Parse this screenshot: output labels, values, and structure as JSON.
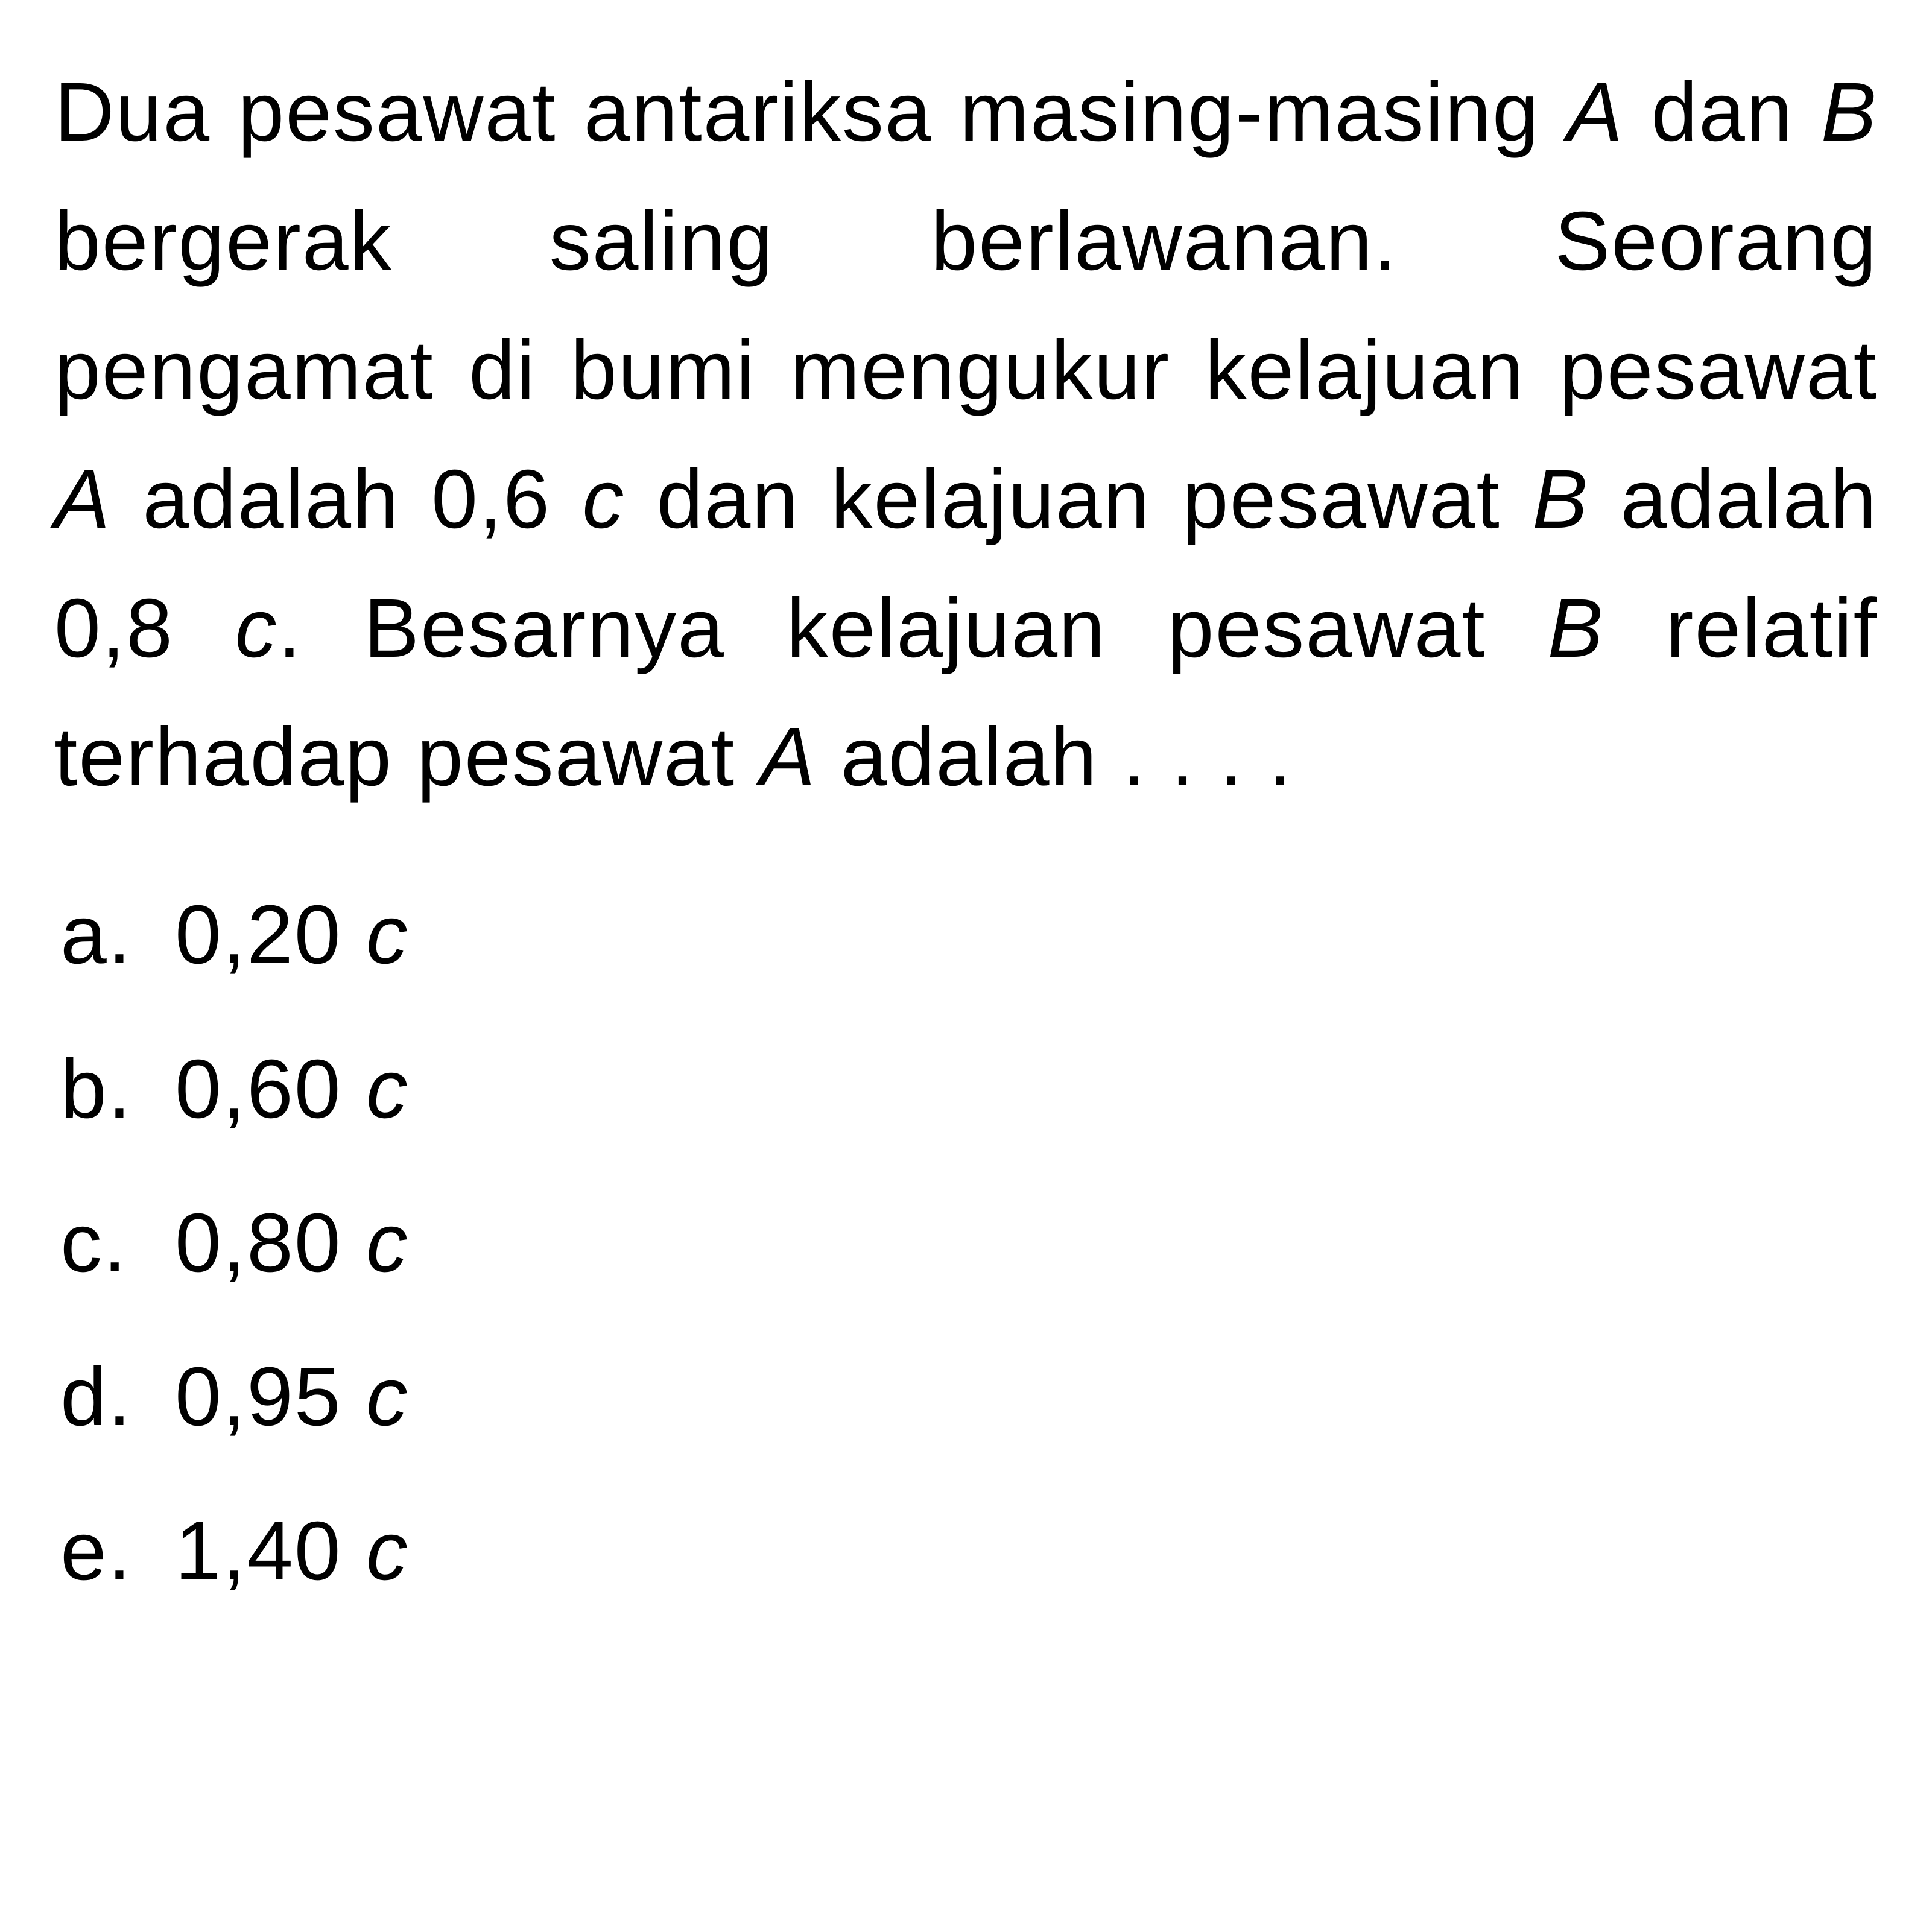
{
  "question": {
    "text_parts": {
      "p1": "Dua pesawat antariksa masing-masing ",
      "v1": "A",
      "p2": " dan ",
      "v2": "B",
      "p3": " bergerak saling berlawanan. Seorang pengamat di bumi mengukur kelajuan pesawat ",
      "v3": "A",
      "p4": " adalah 0,6 ",
      "v4": "c",
      "p5": " dan kelajuan pesawat ",
      "v5": "B",
      "p6": " adalah 0,8 ",
      "v6": "c",
      "p7": ". Besarnya kelajuan pesawat ",
      "v7": "B",
      "p8": " relatif terhadap pesawat ",
      "v8": "A",
      "p9": " adalah . . . ."
    }
  },
  "options": [
    {
      "label": "a.",
      "value": "0,20 ",
      "unit": "c"
    },
    {
      "label": "b.",
      "value": "0,60 ",
      "unit": "c"
    },
    {
      "label": "c.",
      "value": "0,80 ",
      "unit": "c"
    },
    {
      "label": "d.",
      "value": "0,95 ",
      "unit": "c"
    },
    {
      "label": "e.",
      "value": "1,40 ",
      "unit": "c"
    }
  ],
  "styling": {
    "background_color": "#ffffff",
    "text_color": "#000000",
    "font_family": "Arial, Helvetica, sans-serif",
    "question_fontsize": 138,
    "option_fontsize": 138,
    "line_height": 1.55,
    "option_line_height": 1.85
  }
}
